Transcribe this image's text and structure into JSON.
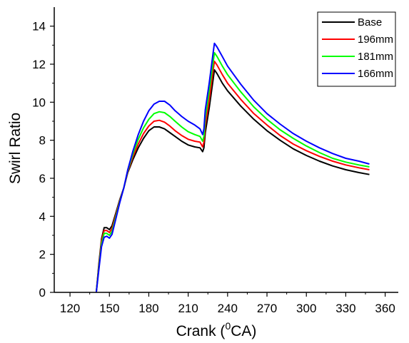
{
  "chart_data": {
    "type": "line",
    "title": "",
    "xlabel": "Crank (",
    "xlabel_sup": "0",
    "xlabel_suffix": "CA)",
    "ylabel": "Swirl Ratio",
    "xlim": [
      108,
      370
    ],
    "ylim": [
      0,
      15
    ],
    "xticks": [
      120,
      150,
      180,
      210,
      240,
      270,
      300,
      330,
      360
    ],
    "yticks": [
      0,
      2,
      4,
      6,
      8,
      10,
      12,
      14
    ],
    "grid": false,
    "legend_position": "top-right",
    "series": [
      {
        "name": "Base",
        "color": "#000000",
        "points": [
          [
            140,
            0
          ],
          [
            142,
            1.5
          ],
          [
            144,
            2.8
          ],
          [
            146,
            3.4
          ],
          [
            148,
            3.4
          ],
          [
            150,
            3.3
          ],
          [
            152,
            3.5
          ],
          [
            155,
            4.2
          ],
          [
            158,
            4.9
          ],
          [
            161,
            5.5
          ],
          [
            164,
            6.3
          ],
          [
            168,
            7.0
          ],
          [
            172,
            7.6
          ],
          [
            176,
            8.1
          ],
          [
            180,
            8.5
          ],
          [
            184,
            8.7
          ],
          [
            188,
            8.7
          ],
          [
            192,
            8.6
          ],
          [
            196,
            8.4
          ],
          [
            200,
            8.2
          ],
          [
            205,
            7.95
          ],
          [
            210,
            7.75
          ],
          [
            215,
            7.65
          ],
          [
            219,
            7.6
          ],
          [
            221,
            7.4
          ],
          [
            222,
            7.6
          ],
          [
            223,
            8.4
          ],
          [
            226,
            9.7
          ],
          [
            229,
            11.2
          ],
          [
            230,
            11.7
          ],
          [
            232,
            11.5
          ],
          [
            236,
            11.0
          ],
          [
            240,
            10.6
          ],
          [
            250,
            9.8
          ],
          [
            260,
            9.1
          ],
          [
            270,
            8.5
          ],
          [
            280,
            8.0
          ],
          [
            290,
            7.55
          ],
          [
            300,
            7.2
          ],
          [
            310,
            6.9
          ],
          [
            320,
            6.65
          ],
          [
            330,
            6.45
          ],
          [
            340,
            6.3
          ],
          [
            348,
            6.2
          ]
        ]
      },
      {
        "name": "196mm",
        "color": "#ff0000",
        "points": [
          [
            140,
            0
          ],
          [
            142,
            1.4
          ],
          [
            144,
            2.7
          ],
          [
            146,
            3.25
          ],
          [
            148,
            3.25
          ],
          [
            150,
            3.15
          ],
          [
            152,
            3.35
          ],
          [
            155,
            4.1
          ],
          [
            158,
            4.85
          ],
          [
            161,
            5.5
          ],
          [
            164,
            6.35
          ],
          [
            168,
            7.15
          ],
          [
            172,
            7.8
          ],
          [
            176,
            8.35
          ],
          [
            180,
            8.75
          ],
          [
            184,
            9.0
          ],
          [
            188,
            9.05
          ],
          [
            192,
            8.95
          ],
          [
            196,
            8.75
          ],
          [
            200,
            8.5
          ],
          [
            205,
            8.25
          ],
          [
            210,
            8.05
          ],
          [
            215,
            7.95
          ],
          [
            219,
            7.9
          ],
          [
            221,
            7.65
          ],
          [
            222,
            7.9
          ],
          [
            223,
            8.8
          ],
          [
            226,
            10.1
          ],
          [
            229,
            11.7
          ],
          [
            230,
            12.15
          ],
          [
            232,
            11.95
          ],
          [
            236,
            11.45
          ],
          [
            240,
            11.0
          ],
          [
            250,
            10.15
          ],
          [
            260,
            9.4
          ],
          [
            270,
            8.8
          ],
          [
            280,
            8.25
          ],
          [
            290,
            7.8
          ],
          [
            300,
            7.45
          ],
          [
            310,
            7.15
          ],
          [
            320,
            6.9
          ],
          [
            330,
            6.7
          ],
          [
            340,
            6.55
          ],
          [
            348,
            6.45
          ]
        ]
      },
      {
        "name": "181mm",
        "color": "#00ff00",
        "points": [
          [
            140,
            0
          ],
          [
            142,
            1.3
          ],
          [
            144,
            2.55
          ],
          [
            146,
            3.1
          ],
          [
            148,
            3.1
          ],
          [
            150,
            3.0
          ],
          [
            152,
            3.2
          ],
          [
            155,
            4.0
          ],
          [
            158,
            4.8
          ],
          [
            161,
            5.5
          ],
          [
            164,
            6.4
          ],
          [
            168,
            7.3
          ],
          [
            172,
            8.05
          ],
          [
            176,
            8.65
          ],
          [
            180,
            9.1
          ],
          [
            184,
            9.4
          ],
          [
            188,
            9.5
          ],
          [
            192,
            9.45
          ],
          [
            196,
            9.25
          ],
          [
            200,
            9.0
          ],
          [
            205,
            8.7
          ],
          [
            210,
            8.45
          ],
          [
            215,
            8.3
          ],
          [
            219,
            8.2
          ],
          [
            221,
            7.95
          ],
          [
            222,
            8.2
          ],
          [
            223,
            9.2
          ],
          [
            226,
            10.6
          ],
          [
            229,
            12.1
          ],
          [
            230,
            12.6
          ],
          [
            232,
            12.4
          ],
          [
            236,
            11.9
          ],
          [
            240,
            11.45
          ],
          [
            250,
            10.55
          ],
          [
            260,
            9.75
          ],
          [
            270,
            9.1
          ],
          [
            280,
            8.55
          ],
          [
            290,
            8.1
          ],
          [
            300,
            7.7
          ],
          [
            310,
            7.35
          ],
          [
            320,
            7.05
          ],
          [
            330,
            6.85
          ],
          [
            340,
            6.7
          ],
          [
            348,
            6.6
          ]
        ]
      },
      {
        "name": "166mm",
        "color": "#0000ff",
        "points": [
          [
            140,
            0
          ],
          [
            142,
            1.2
          ],
          [
            144,
            2.4
          ],
          [
            146,
            2.9
          ],
          [
            148,
            2.95
          ],
          [
            150,
            2.85
          ],
          [
            152,
            3.05
          ],
          [
            155,
            3.9
          ],
          [
            158,
            4.75
          ],
          [
            161,
            5.5
          ],
          [
            164,
            6.45
          ],
          [
            168,
            7.45
          ],
          [
            172,
            8.3
          ],
          [
            176,
            9.0
          ],
          [
            180,
            9.55
          ],
          [
            184,
            9.9
          ],
          [
            188,
            10.05
          ],
          [
            192,
            10.05
          ],
          [
            196,
            9.85
          ],
          [
            200,
            9.55
          ],
          [
            205,
            9.25
          ],
          [
            210,
            9.0
          ],
          [
            215,
            8.8
          ],
          [
            219,
            8.6
          ],
          [
            221,
            8.3
          ],
          [
            222,
            8.6
          ],
          [
            223,
            9.6
          ],
          [
            226,
            11.0
          ],
          [
            229,
            12.6
          ],
          [
            230,
            13.1
          ],
          [
            232,
            12.9
          ],
          [
            236,
            12.4
          ],
          [
            240,
            11.9
          ],
          [
            250,
            10.95
          ],
          [
            260,
            10.1
          ],
          [
            270,
            9.4
          ],
          [
            280,
            8.85
          ],
          [
            290,
            8.35
          ],
          [
            300,
            7.95
          ],
          [
            310,
            7.6
          ],
          [
            320,
            7.3
          ],
          [
            330,
            7.05
          ],
          [
            340,
            6.9
          ],
          [
            348,
            6.75
          ]
        ]
      }
    ]
  }
}
